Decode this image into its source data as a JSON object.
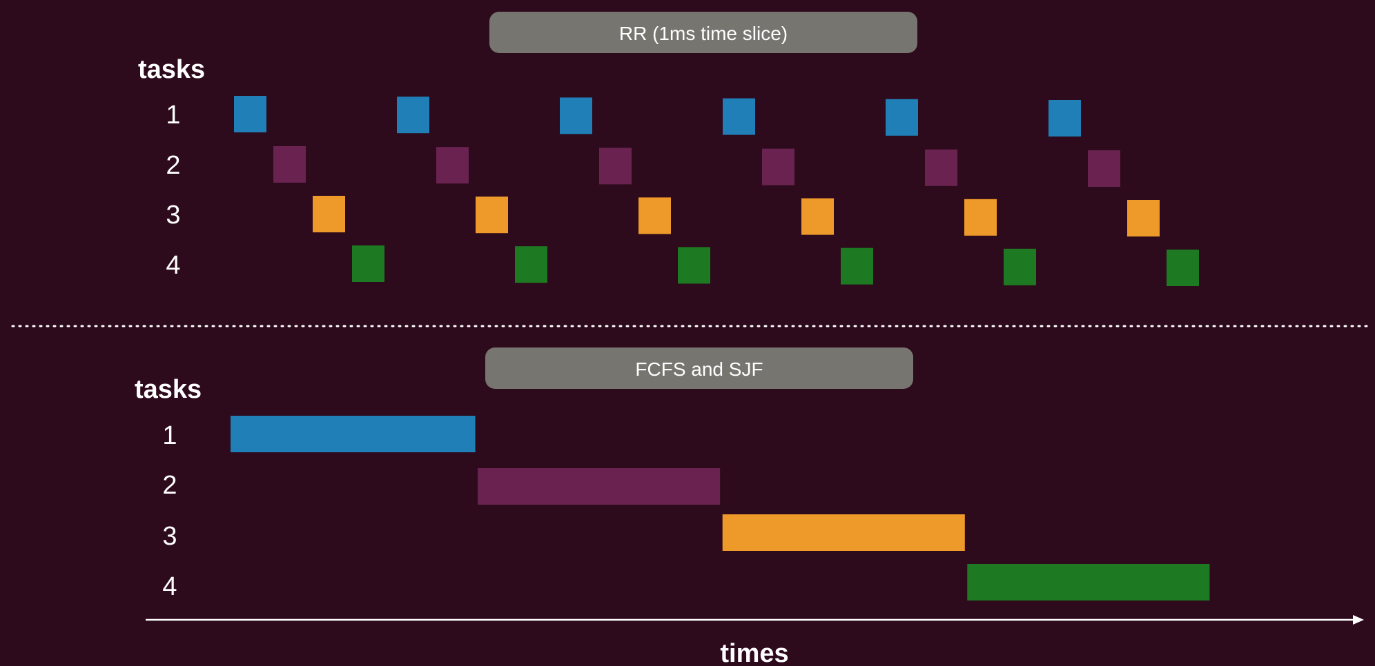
{
  "colors": {
    "background": "#2d0a1c",
    "pill": "#77756f",
    "task_colors": [
      "#1f7fb6",
      "#6a2350",
      "#ee9a2b",
      "#1e7a22"
    ],
    "axis": "#ffffff",
    "divider": "#ffffff"
  },
  "rr": {
    "title": "RR (1ms time slice)",
    "axis_title": "tasks",
    "task_labels": [
      "1",
      "2",
      "3",
      "4"
    ]
  },
  "fcfs": {
    "title": "FCFS and SJF",
    "axis_title": "tasks",
    "task_labels": [
      "1",
      "2",
      "3",
      "4"
    ]
  },
  "x_axis": {
    "label": "times"
  },
  "chart_data": [
    {
      "type": "gantt",
      "title": "RR (1ms time slice)",
      "ylabel": "tasks",
      "xlabel": "times",
      "tasks": [
        "1",
        "2",
        "3",
        "4"
      ],
      "slice_ms": 1,
      "rounds": 6,
      "schedule_order": [
        "1",
        "2",
        "3",
        "4"
      ]
    },
    {
      "type": "gantt",
      "title": "FCFS and SJF",
      "ylabel": "tasks",
      "xlabel": "times",
      "tasks": [
        "1",
        "2",
        "3",
        "4"
      ],
      "bars": [
        {
          "task": "1",
          "start": 0,
          "duration": 6
        },
        {
          "task": "2",
          "start": 6,
          "duration": 6
        },
        {
          "task": "3",
          "start": 12,
          "duration": 6
        },
        {
          "task": "4",
          "start": 18,
          "duration": 6
        }
      ]
    }
  ]
}
